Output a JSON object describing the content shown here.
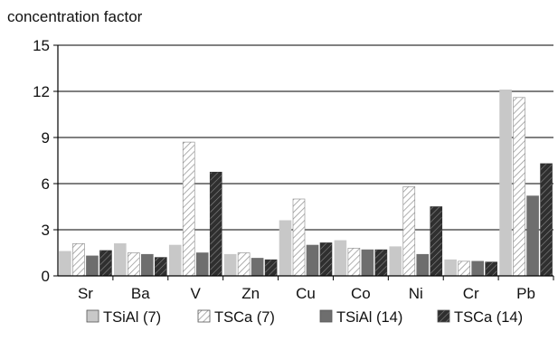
{
  "chart_data": {
    "type": "bar",
    "title": "",
    "ylabel": "concentration factor",
    "xlabel": "",
    "ylim": [
      0,
      15
    ],
    "yticks": [
      0,
      3,
      6,
      9,
      12,
      15
    ],
    "grid": "horizontal",
    "legend_position": "bottom",
    "categories": [
      "Sr",
      "Ba",
      "V",
      "Zn",
      "Cu",
      "Co",
      "Ni",
      "Cr",
      "Pb"
    ],
    "series": [
      {
        "name": "TSiAl (7)",
        "fill": "#c8c8c8",
        "pattern": "solid",
        "values": [
          1.6,
          2.1,
          2.0,
          1.4,
          3.6,
          2.3,
          1.9,
          1.05,
          12.1
        ]
      },
      {
        "name": "TSCa (7)",
        "fill": "#ffffff",
        "pattern": "light-hatch",
        "values": [
          2.1,
          1.5,
          8.7,
          1.5,
          5.0,
          1.8,
          5.8,
          0.95,
          11.6
        ]
      },
      {
        "name": "TSiAl (14)",
        "fill": "#6e6e6e",
        "pattern": "solid",
        "values": [
          1.3,
          1.4,
          1.5,
          1.15,
          2.0,
          1.7,
          1.4,
          0.95,
          5.2
        ]
      },
      {
        "name": "TSCa (14)",
        "fill": "#333333",
        "pattern": "dark-hatch",
        "values": [
          1.65,
          1.2,
          6.75,
          1.05,
          2.15,
          1.7,
          4.5,
          0.9,
          7.3
        ]
      }
    ]
  }
}
